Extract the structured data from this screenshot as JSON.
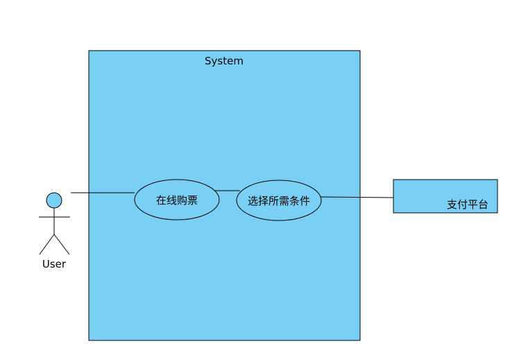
{
  "diagram": {
    "system": {
      "label": "System",
      "fill": "#7acff5",
      "stroke": "#000000"
    },
    "actor": {
      "label": "User",
      "head_fill": "#7acff5"
    },
    "use_cases": [
      {
        "label": "在线购票"
      },
      {
        "label": "选择所需条件"
      }
    ],
    "external": {
      "label": "支付平台",
      "fill": "#7acff5"
    }
  }
}
